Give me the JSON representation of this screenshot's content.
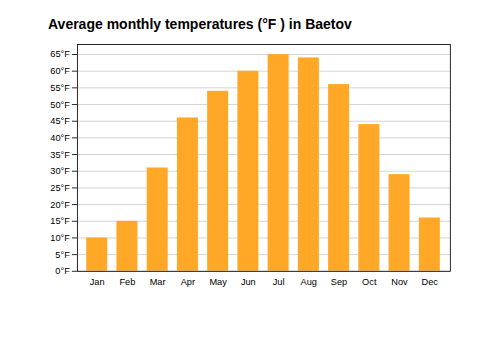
{
  "chart_data": {
    "type": "bar",
    "title": "Average monthly temperatures (°F ) in Baetov",
    "categories": [
      "Jan",
      "Feb",
      "Mar",
      "Apr",
      "May",
      "Jun",
      "Jul",
      "Aug",
      "Sep",
      "Oct",
      "Nov",
      "Dec"
    ],
    "values": [
      10,
      15,
      31,
      46,
      54,
      60,
      65,
      64,
      56,
      44,
      29,
      16
    ],
    "color": "#FFA726",
    "ylim": [
      0,
      68
    ],
    "yticks": [
      {
        "value": 0,
        "label": "0°F"
      },
      {
        "value": 5,
        "label": "5°F"
      },
      {
        "value": 10,
        "label": "10°F"
      },
      {
        "value": 15,
        "label": "15°F"
      },
      {
        "value": 20,
        "label": "20°F"
      },
      {
        "value": 25,
        "label": "25°F"
      },
      {
        "value": 30,
        "label": "30°F"
      },
      {
        "value": 35,
        "label": "35°F"
      },
      {
        "value": 40,
        "label": "40°F"
      },
      {
        "value": 45,
        "label": "45°F"
      },
      {
        "value": 50,
        "label": "50°F"
      },
      {
        "value": 55,
        "label": "55°F"
      },
      {
        "value": 60,
        "label": "60°F"
      },
      {
        "value": 65,
        "label": "65°F"
      }
    ],
    "grid": true
  }
}
